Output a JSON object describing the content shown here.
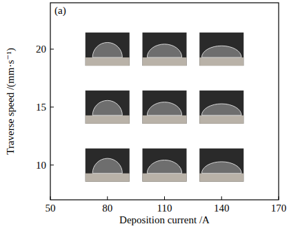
{
  "chart_data": {
    "type": "scatter",
    "annotations": [
      "(a)"
    ],
    "x_label": "Deposition current /A",
    "y_label": "Traverse speed /(mm·s⁻¹)",
    "x": [
      80,
      110,
      140,
      80,
      110,
      140,
      80,
      110,
      140
    ],
    "values": [
      20,
      20,
      20,
      15,
      15,
      15,
      10,
      10,
      10
    ],
    "xlim": [
      50,
      170
    ],
    "ylim": [
      7,
      24
    ],
    "xticks": [
      50,
      80,
      110,
      140,
      170
    ],
    "yticks": [
      10,
      15,
      20
    ],
    "marker": "photo"
  }
}
